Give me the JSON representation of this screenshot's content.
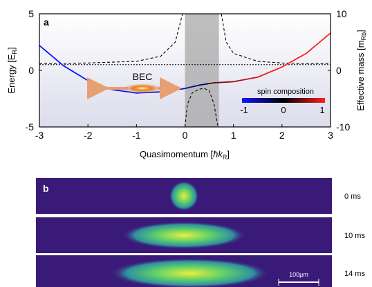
{
  "panel_a": {
    "letter": "a",
    "bec_label": "BEC",
    "colorbar": {
      "title": "spin composition",
      "ticks": [
        "-1",
        "0",
        "1"
      ],
      "colors": [
        "#0a16ff",
        "#000000",
        "#ff2020"
      ]
    },
    "colors": {
      "background_top": "#ffffff",
      "background_bottom": "#dcdcec",
      "gray_band": "#a8a8a8",
      "bec_arrow": "#e7a071",
      "bec_core": "#e87a1c"
    }
  },
  "chart_data": {
    "type": "line",
    "xlabel_main": "Quasimomentum [",
    "xlabel_unit": "ħk",
    "xlabel_sub": "R",
    "xlabel_end": "]",
    "ylabel_left_main": "Energy [E",
    "ylabel_left_sub": "R",
    "ylabel_left_end": "]",
    "ylabel_right_main": "Effective mass [m",
    "ylabel_right_sub": "Rb",
    "ylabel_right_end": "]",
    "xlim": [
      -3,
      3
    ],
    "ylim_left": [
      -5,
      5
    ],
    "ylim_right": [
      -10,
      10
    ],
    "x_ticks": [
      "-3",
      "-2",
      "-1",
      "0",
      "1",
      "2",
      "3"
    ],
    "y_left_ticks": [
      "5",
      "0",
      "-5"
    ],
    "y_right_ticks": [
      "10",
      "0",
      "-10"
    ],
    "shaded_region_x": [
      0,
      0.7
    ],
    "series": [
      {
        "role": "energy",
        "x": [
          -3,
          -2.5,
          -2,
          -1.5,
          -1,
          -0.5,
          0,
          0.3,
          0.6,
          1,
          1.5,
          2,
          2.5,
          3
        ],
        "y": [
          2.2,
          0.4,
          -0.9,
          -1.7,
          -2.0,
          -1.9,
          -1.6,
          -1.3,
          -1.1,
          -1.0,
          -0.6,
          0.3,
          1.5,
          3.3
        ],
        "spin": [
          -1,
          -1,
          -1,
          -1,
          -1,
          -0.9,
          -0.6,
          -0.2,
          0.1,
          0.4,
          0.8,
          1,
          1,
          1
        ]
      },
      {
        "role": "effective_mass_left",
        "x": [
          -3,
          -2,
          -1,
          -0.5,
          -0.2,
          -0.05
        ],
        "y": [
          1.2,
          1.3,
          1.6,
          2.5,
          5,
          10
        ]
      },
      {
        "role": "effective_mass_center",
        "x": [
          0,
          0.05,
          0.15,
          0.3,
          0.4,
          0.5,
          0.6,
          0.68
        ],
        "y": [
          -10,
          -6,
          -4,
          -3.3,
          -3.2,
          -3.6,
          -6,
          -10
        ]
      },
      {
        "role": "effective_mass_right",
        "x": [
          0.75,
          0.85,
          1,
          1.5,
          2,
          2.5,
          3
        ],
        "y": [
          10,
          5,
          3,
          1.6,
          1.3,
          1.2,
          1.2
        ]
      }
    ]
  },
  "panel_b": {
    "letter": "b",
    "frames": [
      {
        "time_label": "0 ms",
        "cloud_cx": 0.5,
        "cloud_rx": 0.05,
        "cloud_ry": 0.42
      },
      {
        "time_label": "10 ms",
        "cloud_cx": 0.5,
        "cloud_rx": 0.21,
        "cloud_ry": 0.38
      },
      {
        "time_label": "14 ms",
        "cloud_cx": 0.52,
        "cloud_rx": 0.27,
        "cloud_ry": 0.42
      }
    ],
    "scale_bar_label": "100μm",
    "colors": {
      "background": "#3a1a78",
      "cloud_outer": "#2f8fa0",
      "cloud_mid": "#5ecf6a",
      "cloud_core": "#e8f03c"
    }
  }
}
